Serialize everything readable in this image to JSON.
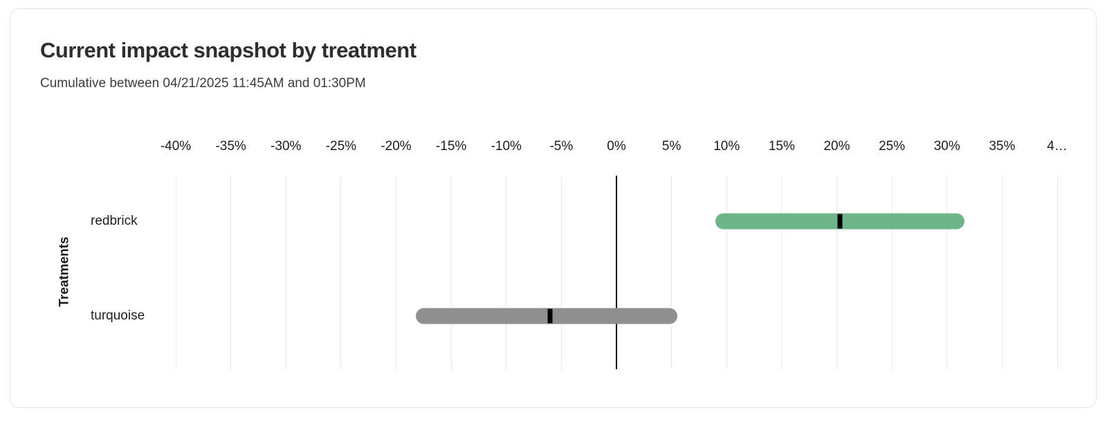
{
  "card": {
    "title": "Current impact snapshot by treatment",
    "subtitle": "Cumulative between 04/21/2025 11:45AM and 01:30PM"
  },
  "chart_data": {
    "type": "bar",
    "orientation": "horizontal",
    "title": "Current impact snapshot by treatment",
    "subtitle": "Cumulative between 04/21/2025 11:45AM and 01:30PM",
    "ylabel": "Treatments",
    "xlabel_unit": "%",
    "xlim": [
      -40,
      40
    ],
    "grid": true,
    "zero_line": true,
    "x_ticks": [
      {
        "value": -40,
        "label": "-40%"
      },
      {
        "value": -35,
        "label": "-35%"
      },
      {
        "value": -30,
        "label": "-30%"
      },
      {
        "value": -25,
        "label": "-25%"
      },
      {
        "value": -20,
        "label": "-20%"
      },
      {
        "value": -15,
        "label": "-15%"
      },
      {
        "value": -10,
        "label": "-10%"
      },
      {
        "value": -5,
        "label": "-5%"
      },
      {
        "value": 0,
        "label": "0%"
      },
      {
        "value": 5,
        "label": "5%"
      },
      {
        "value": 10,
        "label": "10%"
      },
      {
        "value": 15,
        "label": "15%"
      },
      {
        "value": 20,
        "label": "20%"
      },
      {
        "value": 25,
        "label": "25%"
      },
      {
        "value": 30,
        "label": "30%"
      },
      {
        "value": 35,
        "label": "35%"
      },
      {
        "value": 40,
        "label": "4…"
      }
    ],
    "categories": [
      "redbrick",
      "turquoise"
    ],
    "series": [
      {
        "name": "redbrick",
        "low": 9.0,
        "mid": 20.3,
        "high": 31.6,
        "color": "#6fb58a"
      },
      {
        "name": "turquoise",
        "low": -18.2,
        "mid": -6.0,
        "high": 5.5,
        "color": "#8f8f8f"
      }
    ],
    "marker_color": "#000000",
    "gridline_color": "#e9e9e9",
    "zero_line_color": "#141414"
  }
}
